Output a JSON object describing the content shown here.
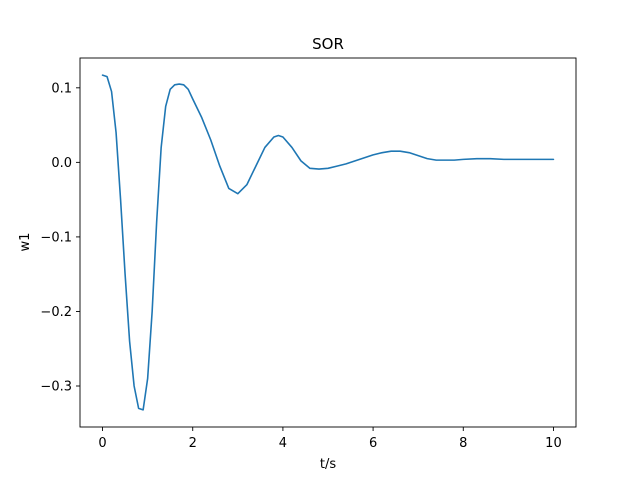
{
  "chart_data": {
    "type": "line",
    "title": "SOR",
    "xlabel": "t/s",
    "ylabel": "w1",
    "xlim": [
      -0.5,
      10.5
    ],
    "ylim": [
      -0.355,
      0.14
    ],
    "xticks": [
      0,
      2,
      4,
      6,
      8,
      10
    ],
    "xtick_labels": [
      "0",
      "2",
      "4",
      "6",
      "8",
      "10"
    ],
    "yticks": [
      0.1,
      0.0,
      -0.1,
      -0.2,
      -0.3
    ],
    "ytick_labels": [
      "0.1",
      "0.0",
      "−0.1",
      "−0.2",
      "−0.3"
    ],
    "grid": false,
    "series": [
      {
        "color": "#1f77b4",
        "x": [
          0.0,
          0.1,
          0.2,
          0.3,
          0.4,
          0.5,
          0.6,
          0.7,
          0.8,
          0.9,
          1.0,
          1.1,
          1.2,
          1.3,
          1.4,
          1.5,
          1.6,
          1.7,
          1.8,
          1.9,
          2.0,
          2.2,
          2.4,
          2.6,
          2.8,
          3.0,
          3.2,
          3.4,
          3.6,
          3.8,
          3.9,
          4.0,
          4.2,
          4.4,
          4.6,
          4.8,
          5.0,
          5.2,
          5.4,
          5.6,
          5.8,
          6.0,
          6.2,
          6.4,
          6.6,
          6.8,
          7.0,
          7.2,
          7.4,
          7.6,
          7.8,
          8.0,
          8.3,
          8.6,
          8.9,
          9.2,
          9.5,
          9.8,
          10.0
        ],
        "y": [
          0.117,
          0.115,
          0.095,
          0.04,
          -0.05,
          -0.15,
          -0.24,
          -0.3,
          -0.33,
          -0.332,
          -0.29,
          -0.2,
          -0.08,
          0.02,
          0.075,
          0.098,
          0.104,
          0.105,
          0.104,
          0.098,
          0.085,
          0.06,
          0.03,
          -0.005,
          -0.035,
          -0.042,
          -0.03,
          -0.005,
          0.02,
          0.034,
          0.036,
          0.034,
          0.02,
          0.002,
          -0.008,
          -0.009,
          -0.008,
          -0.005,
          -0.002,
          0.002,
          0.006,
          0.01,
          0.013,
          0.015,
          0.015,
          0.013,
          0.009,
          0.005,
          0.003,
          0.003,
          0.003,
          0.004,
          0.005,
          0.005,
          0.004,
          0.004,
          0.004,
          0.004,
          0.004
        ]
      }
    ]
  }
}
